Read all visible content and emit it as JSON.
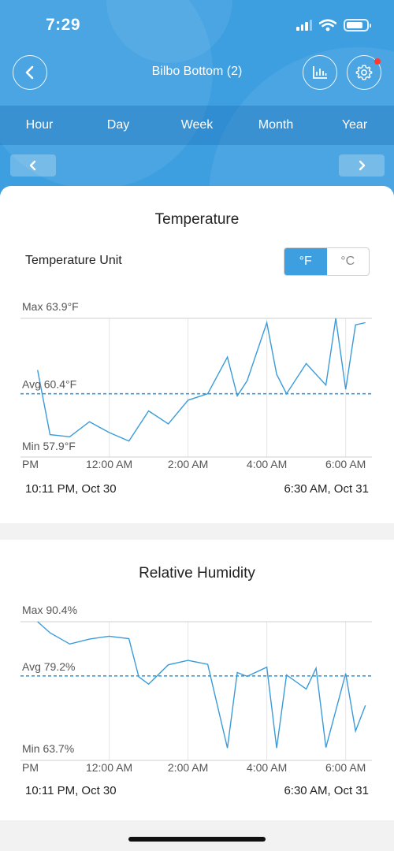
{
  "status_bar": {
    "time": "7:29"
  },
  "header": {
    "title": "Bilbo Bottom (2)"
  },
  "tabs": [
    "Hour",
    "Day",
    "Week",
    "Month",
    "Year"
  ],
  "temperature": {
    "title": "Temperature",
    "unit_label": "Temperature Unit",
    "unit_options": [
      "°F",
      "°C"
    ],
    "selected_unit": "°F",
    "max_label": "Max 63.9°F",
    "avg_label": "Avg 60.4°F",
    "min_label": "Min 57.9°F",
    "range_start": "10:11 PM,  Oct 30",
    "range_end": "6:30 AM,  Oct 31"
  },
  "humidity": {
    "title": "Relative Humidity",
    "max_label": "Max 90.4%",
    "avg_label": "Avg 79.2%",
    "min_label": "Min 63.7%",
    "range_start": "10:11 PM,  Oct 30",
    "range_end": "6:30 AM,  Oct 31"
  },
  "x_ticks": [
    "PM",
    "12:00 AM",
    "2:00 AM",
    "4:00 AM",
    "6:00 AM"
  ],
  "colors": {
    "accent": "#3d9fe0",
    "line": "#3a9bd9"
  },
  "chart_data": [
    {
      "type": "line",
      "title": "Temperature",
      "ylim": [
        57.9,
        63.9
      ],
      "average": 60.4,
      "x": [
        "22:11",
        "22:30",
        "23:00",
        "23:30",
        "00:00",
        "00:30",
        "01:00",
        "01:30",
        "02:00",
        "02:30",
        "03:00",
        "03:15",
        "03:30",
        "04:00",
        "04:15",
        "04:30",
        "05:00",
        "05:30",
        "05:45",
        "06:00",
        "06:15",
        "06:30"
      ],
      "values": [
        61.5,
        58.5,
        58.4,
        59.1,
        58.6,
        58.2,
        59.6,
        59.0,
        60.1,
        60.4,
        62.1,
        60.3,
        61.0,
        63.7,
        61.3,
        60.4,
        61.8,
        60.8,
        63.9,
        60.6,
        63.6,
        63.7
      ]
    },
    {
      "type": "line",
      "title": "Relative Humidity",
      "ylim": [
        63.7,
        90.4
      ],
      "average": 79.2,
      "x": [
        "22:11",
        "22:30",
        "23:00",
        "23:30",
        "00:00",
        "00:30",
        "00:45",
        "01:00",
        "01:30",
        "02:00",
        "02:30",
        "03:00",
        "03:15",
        "03:30",
        "04:00",
        "04:15",
        "04:30",
        "05:00",
        "05:15",
        "05:30",
        "06:00",
        "06:15",
        "06:30"
      ],
      "values": [
        90.4,
        88.1,
        85.8,
        86.8,
        87.4,
        86.9,
        79.0,
        77.5,
        81.5,
        82.4,
        81.6,
        64.3,
        79.9,
        79.1,
        81.0,
        64.3,
        79.4,
        76.5,
        80.8,
        64.4,
        79.7,
        67.8,
        73.1
      ]
    }
  ]
}
